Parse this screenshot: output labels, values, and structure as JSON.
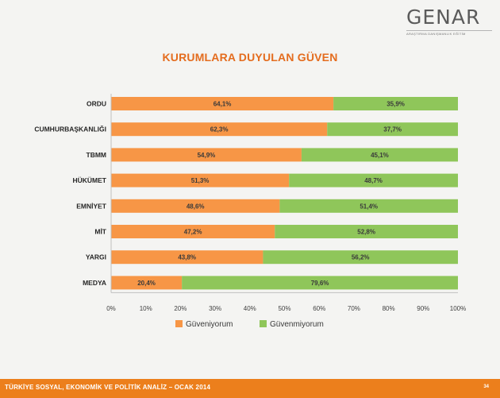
{
  "logo": {
    "name": "GENAR",
    "tagline": "ARAŞTIRMA DANIŞMANLIK EĞİTİM"
  },
  "footer": {
    "text": "TÜRKİYE SOSYAL, EKONOMİK VE POLİTİK ANALİZ – OCAK 2014",
    "page": "34"
  },
  "colors": {
    "orange": "#f79646",
    "green": "#8fc65a",
    "title": "#e46c1e",
    "footer": "#ec7f1c"
  },
  "chart_data": {
    "type": "bar",
    "orientation": "horizontal",
    "stacked": true,
    "title": "KURUMLARA DUYULAN GÜVEN",
    "categories": [
      "ORDU",
      "CUMHURBAŞKANLIĞI",
      "TBMM",
      "HÜKÜMET",
      "EMNİYET",
      "MİT",
      "YARGI",
      "MEDYA"
    ],
    "series": [
      {
        "name": "Güveniyorum",
        "values": [
          64.1,
          62.3,
          54.9,
          51.3,
          48.6,
          47.2,
          43.8,
          20.4
        ],
        "labels": [
          "64,1%",
          "62,3%",
          "54,9%",
          "51,3%",
          "48,6%",
          "47,2%",
          "43,8%",
          "20,4%"
        ]
      },
      {
        "name": "Güvenmiyorum",
        "values": [
          35.9,
          37.7,
          45.1,
          48.7,
          51.4,
          52.8,
          56.2,
          79.6
        ],
        "labels": [
          "35,9%",
          "37,7%",
          "45,1%",
          "48,7%",
          "51,4%",
          "52,8%",
          "56,2%",
          "79,6%"
        ]
      }
    ],
    "xlim": [
      0,
      100
    ],
    "xticks": [
      "0%",
      "10%",
      "20%",
      "30%",
      "40%",
      "50%",
      "60%",
      "70%",
      "80%",
      "90%",
      "100%"
    ],
    "grid": false,
    "legend": "bottom"
  }
}
